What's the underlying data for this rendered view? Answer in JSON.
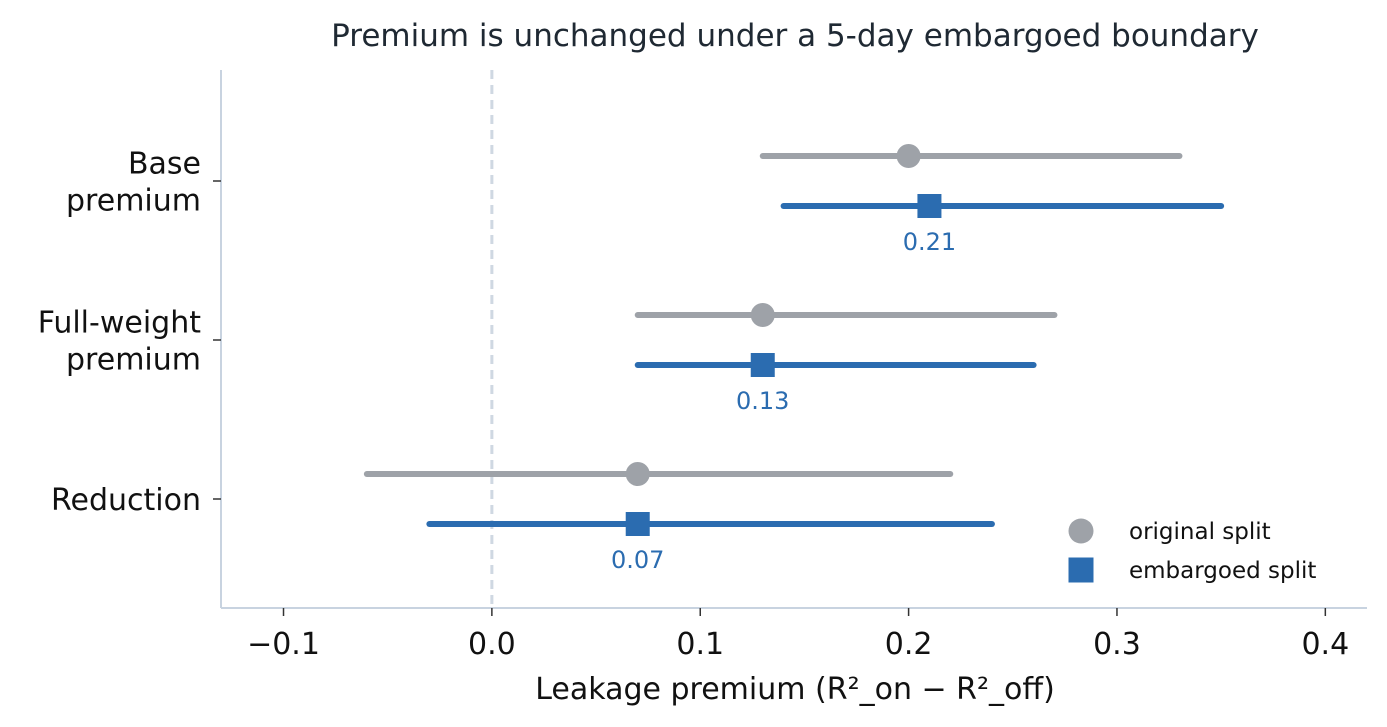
{
  "chart_data": {
    "type": "forest",
    "title": "Premium is unchanged under a 5-day embargoed boundary",
    "xlabel": "Leakage premium  (R²_on − R²_off)",
    "ylabel": "",
    "xlim": [
      -0.13,
      0.42
    ],
    "x_ticks": [
      -0.1,
      0.0,
      0.1,
      0.2,
      0.3,
      0.4
    ],
    "x_tick_labels": [
      "−0.1",
      "0.0",
      "0.1",
      "0.2",
      "0.3",
      "0.4"
    ],
    "reference_line": 0.0,
    "grid": false,
    "legend_position": "bottom-right",
    "categories": [
      {
        "label_lines": [
          "Base",
          "premium"
        ]
      },
      {
        "label_lines": [
          "Full-weight",
          "premium"
        ]
      },
      {
        "label_lines": [
          "Reduction"
        ]
      }
    ],
    "series": [
      {
        "name": "original split",
        "marker": "circle",
        "color": "#9ea2a8",
        "points": [
          {
            "value": 0.2,
            "lo": 0.13,
            "hi": 0.33
          },
          {
            "value": 0.13,
            "lo": 0.07,
            "hi": 0.27
          },
          {
            "value": 0.07,
            "lo": -0.06,
            "hi": 0.22
          }
        ]
      },
      {
        "name": "embargoed split",
        "marker": "square",
        "color": "#2b6cb0",
        "points": [
          {
            "value": 0.21,
            "lo": 0.14,
            "hi": 0.35,
            "label": "0.21"
          },
          {
            "value": 0.13,
            "lo": 0.07,
            "hi": 0.26,
            "label": "0.13"
          },
          {
            "value": 0.07,
            "lo": -0.03,
            "hi": 0.24,
            "label": "0.07"
          }
        ]
      }
    ]
  }
}
